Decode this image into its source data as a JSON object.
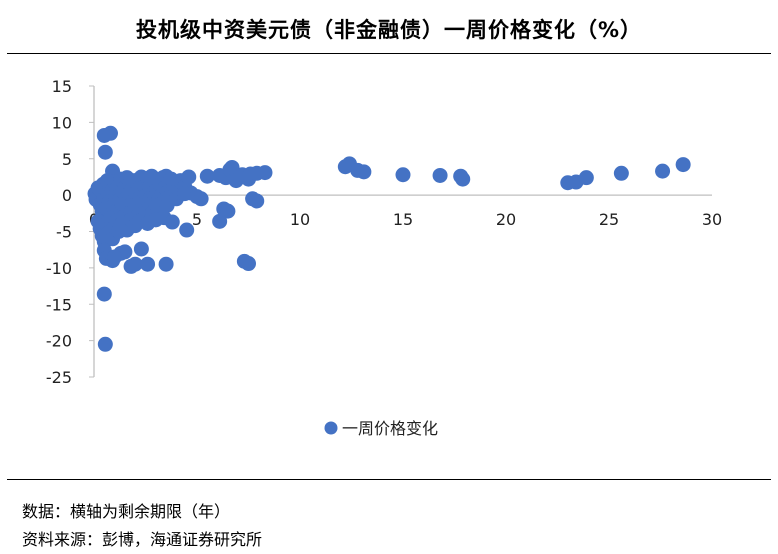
{
  "header": {
    "title": "投机级中资美元债（非金融债）一周价格变化（%）"
  },
  "footer": {
    "note_axis": "数据：横轴为剩余期限（年）",
    "note_source": "资料来源：彭博，海通证券研究所"
  },
  "chart_data": {
    "type": "scatter",
    "title": "投机级中资美元债（非金融债）一周价格变化（%）",
    "xlabel": "",
    "ylabel": "",
    "xlim": [
      0,
      30
    ],
    "ylim": [
      -25,
      15
    ],
    "x_ticks": [
      0,
      5,
      10,
      15,
      20,
      25,
      30
    ],
    "y_ticks": [
      15,
      10,
      5,
      0,
      -5,
      -10,
      -15,
      -20,
      -25
    ],
    "grid": false,
    "legend": "bottom-center",
    "colors": {
      "series": "#4472C4",
      "axis": "#bfbfbf"
    },
    "series": [
      {
        "name": "一周价格变化",
        "points": [
          [
            0.5,
            8.2
          ],
          [
            0.8,
            8.5
          ],
          [
            0.55,
            5.9
          ],
          [
            0.9,
            3.3
          ],
          [
            0.05,
            0.2
          ],
          [
            0.1,
            -0.6
          ],
          [
            0.2,
            1.0
          ],
          [
            0.3,
            -1.3
          ],
          [
            0.35,
            0.6
          ],
          [
            0.4,
            -2.2
          ],
          [
            0.45,
            1.5
          ],
          [
            0.5,
            -0.4
          ],
          [
            0.55,
            0.9
          ],
          [
            0.6,
            -1.8
          ],
          [
            0.65,
            2.0
          ],
          [
            0.7,
            0.3
          ],
          [
            0.75,
            -0.9
          ],
          [
            0.8,
            1.2
          ],
          [
            0.85,
            -2.6
          ],
          [
            0.9,
            0.7
          ],
          [
            0.95,
            -1.5
          ],
          [
            1.0,
            1.8
          ],
          [
            1.05,
            -0.2
          ],
          [
            1.1,
            0.9
          ],
          [
            1.15,
            -2.0
          ],
          [
            1.2,
            1.4
          ],
          [
            1.25,
            -0.7
          ],
          [
            1.3,
            2.2
          ],
          [
            1.35,
            -1.1
          ],
          [
            1.4,
            0.5
          ],
          [
            1.45,
            -3.0
          ],
          [
            1.5,
            1.0
          ],
          [
            1.55,
            -0.5
          ],
          [
            1.6,
            2.4
          ],
          [
            1.65,
            -1.6
          ],
          [
            1.7,
            0.2
          ],
          [
            1.75,
            1.6
          ],
          [
            1.8,
            -2.3
          ],
          [
            1.85,
            0.8
          ],
          [
            1.9,
            -0.9
          ],
          [
            1.95,
            2.0
          ],
          [
            2.0,
            -1.3
          ],
          [
            2.05,
            0.4
          ],
          [
            2.1,
            1.7
          ],
          [
            2.15,
            -2.8
          ],
          [
            2.2,
            0.9
          ],
          [
            2.25,
            -0.3
          ],
          [
            2.3,
            2.5
          ],
          [
            2.35,
            -1.7
          ],
          [
            2.4,
            0.6
          ],
          [
            2.45,
            1.3
          ],
          [
            2.5,
            -2.1
          ],
          [
            2.55,
            0.0
          ],
          [
            2.6,
            2.3
          ],
          [
            2.65,
            -1.0
          ],
          [
            2.7,
            1.1
          ],
          [
            2.75,
            -0.4
          ],
          [
            2.8,
            2.6
          ],
          [
            2.85,
            -2.4
          ],
          [
            2.9,
            0.3
          ],
          [
            2.95,
            1.9
          ],
          [
            3.0,
            -1.2
          ],
          [
            3.05,
            0.7
          ],
          [
            3.1,
            2.1
          ],
          [
            3.15,
            -0.6
          ],
          [
            3.2,
            1.5
          ],
          [
            3.25,
            -1.9
          ],
          [
            3.3,
            0.1
          ],
          [
            3.35,
            2.4
          ],
          [
            3.4,
            -0.8
          ],
          [
            3.45,
            1.0
          ],
          [
            3.5,
            2.6
          ],
          [
            3.55,
            -1.4
          ],
          [
            3.6,
            0.5
          ],
          [
            3.65,
            1.8
          ],
          [
            3.7,
            -0.2
          ],
          [
            3.75,
            2.2
          ],
          [
            3.8,
            0.4
          ],
          [
            3.9,
            1.3
          ],
          [
            4.0,
            -0.5
          ],
          [
            4.1,
            0.9
          ],
          [
            4.2,
            2.0
          ],
          [
            4.3,
            0.2
          ],
          [
            4.4,
            1.2
          ],
          [
            4.6,
            2.5
          ],
          [
            4.7,
            0.3
          ],
          [
            0.2,
            -3.6
          ],
          [
            0.3,
            -4.6
          ],
          [
            0.4,
            -5.6
          ],
          [
            0.5,
            -6.4
          ],
          [
            0.6,
            -4.0
          ],
          [
            0.7,
            -5.2
          ],
          [
            0.8,
            -3.2
          ],
          [
            0.9,
            -6.0
          ],
          [
            1.0,
            -4.4
          ],
          [
            1.1,
            -3.5
          ],
          [
            1.2,
            -5.0
          ],
          [
            1.3,
            -4.1
          ],
          [
            1.4,
            -3.8
          ],
          [
            1.6,
            -4.8
          ],
          [
            1.8,
            -3.4
          ],
          [
            2.0,
            -4.2
          ],
          [
            2.2,
            -3.6
          ],
          [
            2.6,
            -3.9
          ],
          [
            3.0,
            -3.4
          ],
          [
            3.4,
            -3.1
          ],
          [
            3.8,
            -3.7
          ],
          [
            4.5,
            -4.8
          ],
          [
            3.5,
            -9.5
          ],
          [
            2.6,
            -9.5
          ],
          [
            1.3,
            -8.0
          ],
          [
            1.5,
            -7.8
          ],
          [
            2.3,
            -7.4
          ],
          [
            0.5,
            -7.6
          ],
          [
            0.6,
            -8.7
          ],
          [
            0.9,
            -9.0
          ],
          [
            1.0,
            -8.5
          ],
          [
            1.8,
            -9.8
          ],
          [
            2.0,
            -9.5
          ],
          [
            0.5,
            -13.6
          ],
          [
            0.55,
            -20.5
          ],
          [
            4.4,
            0.2
          ],
          [
            5.0,
            -0.2
          ],
          [
            5.2,
            -0.5
          ],
          [
            5.5,
            2.6
          ],
          [
            6.1,
            2.7
          ],
          [
            6.4,
            2.4
          ],
          [
            6.6,
            3.5
          ],
          [
            6.7,
            3.8
          ],
          [
            6.9,
            2.0
          ],
          [
            7.2,
            2.8
          ],
          [
            7.5,
            2.2
          ],
          [
            7.6,
            2.9
          ],
          [
            7.9,
            3.0
          ],
          [
            8.3,
            3.1
          ],
          [
            6.3,
            -1.9
          ],
          [
            6.5,
            -2.2
          ],
          [
            6.1,
            -3.6
          ],
          [
            7.7,
            -0.5
          ],
          [
            7.9,
            -0.8
          ],
          [
            7.3,
            -9.1
          ],
          [
            7.5,
            -9.4
          ],
          [
            12.2,
            3.9
          ],
          [
            12.4,
            4.3
          ],
          [
            12.8,
            3.4
          ],
          [
            13.1,
            3.2
          ],
          [
            15.0,
            2.8
          ],
          [
            16.8,
            2.7
          ],
          [
            17.8,
            2.6
          ],
          [
            17.9,
            2.2
          ],
          [
            23.0,
            1.7
          ],
          [
            23.4,
            1.8
          ],
          [
            23.9,
            2.4
          ],
          [
            25.6,
            3.0
          ],
          [
            27.6,
            3.3
          ],
          [
            28.6,
            4.2
          ]
        ]
      }
    ]
  }
}
